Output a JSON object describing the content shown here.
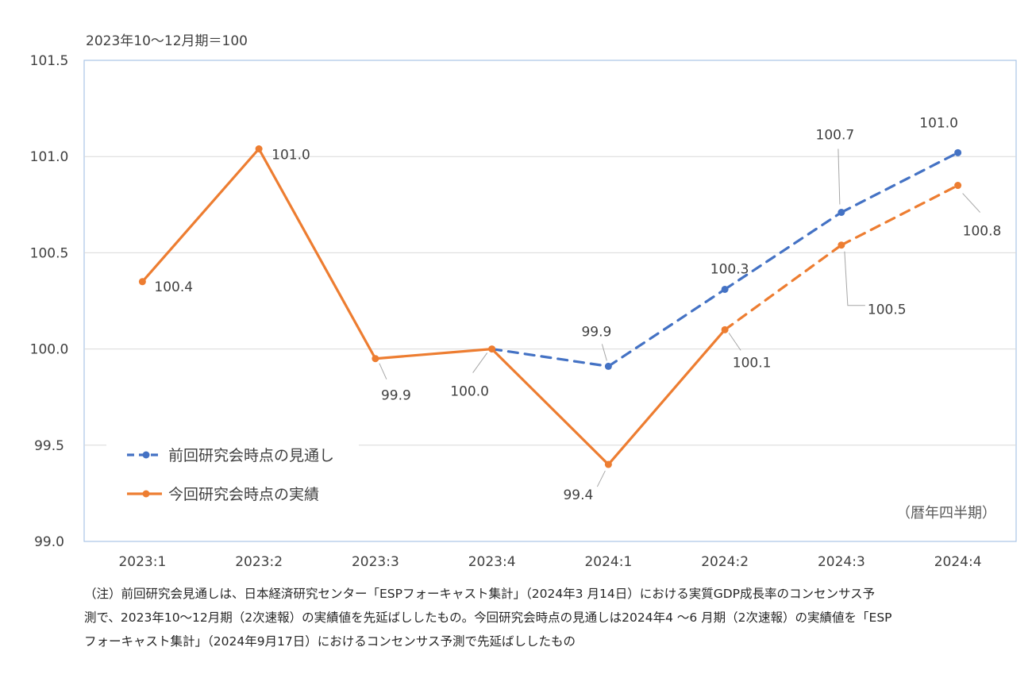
{
  "unit_label": "2023年10～12月期＝100",
  "note": {
    "line1": "（注）前回研究会見通しは、日本経済研究センター「ESPフォーキャスト集計」（2024年3 月14日）における実質GDP成長率のコンセンサス予",
    "line2": "測で、2023年10～12月期（2次速報）の実績値を先延ばししたもの。今回研究会時点の見通しは2024年4 ～6 月期（2次速報）の実績値を「ESP",
    "line3": "フォーキャスト集計」（2024年9月17日）におけるコンセンサス予測で先延ばししたもの"
  },
  "chart_data": {
    "type": "line",
    "title": "",
    "xlabel": "",
    "ylabel": "2023年10～12月期＝100",
    "axis_note": "（暦年四半期）",
    "categories": [
      "2023:1",
      "2023:2",
      "2023:3",
      "2023:4",
      "2024:1",
      "2024:2",
      "2024:3",
      "2024:4"
    ],
    "y_ticks": [
      "99.0",
      "99.5",
      "100.0",
      "100.5",
      "101.0",
      "101.5"
    ],
    "ylim": [
      99.0,
      101.5
    ],
    "grid": true,
    "legend_position": "bottom-left",
    "series": [
      {
        "name": "前回研究会時点の見通し",
        "color": "#4472C4",
        "style": "dashed",
        "values": [
          null,
          null,
          null,
          100.0,
          99.91,
          100.31,
          100.71,
          101.02
        ],
        "labels": [
          null,
          null,
          null,
          null,
          "99.9",
          "100.3",
          "100.7",
          "101.0"
        ]
      },
      {
        "name": "今回研究会時点の実績",
        "color": "#ED7D31",
        "style": "solid-then-dashed",
        "dash_from_index": 5,
        "values": [
          100.35,
          101.04,
          99.95,
          100.0,
          99.4,
          100.1,
          100.54,
          100.85
        ],
        "labels": [
          "100.4",
          "101.0",
          "99.9",
          "100.0",
          "99.4",
          "100.1",
          "100.5",
          "100.8"
        ]
      }
    ]
  }
}
